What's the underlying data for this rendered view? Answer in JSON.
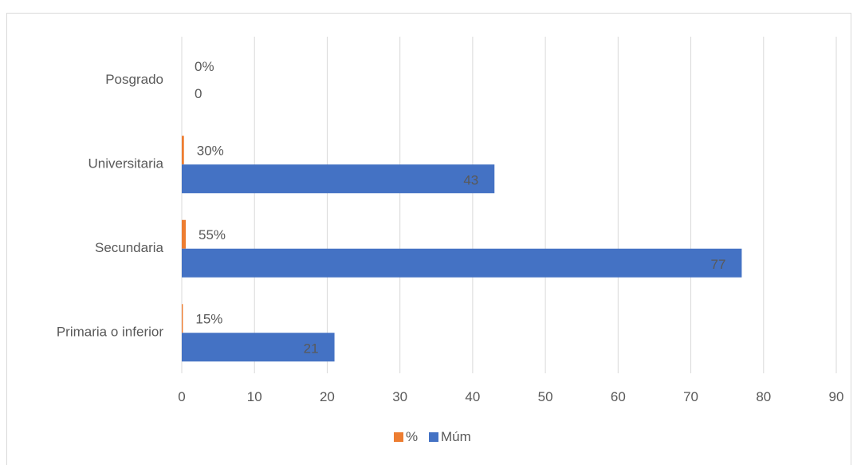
{
  "chart_data": {
    "type": "bar",
    "orientation": "horizontal",
    "categories": [
      "Primaria o inferior",
      "Secundaria",
      "Universitaria",
      "Posgrado"
    ],
    "series": [
      {
        "name": "%",
        "values": [
          0.15,
          0.55,
          0.3,
          0
        ],
        "labels": [
          "15%",
          "55%",
          "30%",
          "0%"
        ],
        "color": "#ED7D31"
      },
      {
        "name": "Múm",
        "values": [
          21,
          77,
          43,
          0
        ],
        "labels": [
          "21",
          "77",
          "43",
          "0"
        ],
        "color": "#4472C4"
      }
    ],
    "xlim": [
      0,
      90
    ],
    "x_ticks": [
      "0",
      "10",
      "20",
      "30",
      "40",
      "50",
      "60",
      "70",
      "80",
      "90"
    ],
    "grid": "vertical",
    "legend_position": "bottom",
    "title": "",
    "xlabel": "",
    "ylabel": ""
  }
}
